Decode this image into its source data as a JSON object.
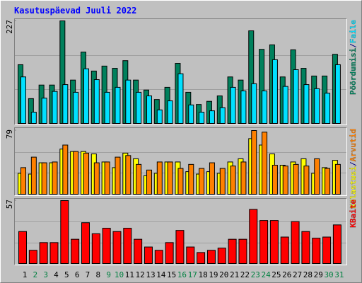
{
  "chart_data": [
    {
      "type": "bar",
      "title": "Kasutuspäevad Juuli 2022",
      "series": [
        {
          "name": "Pöördumisi",
          "color": "#00805c",
          "values": [
            130,
            55,
            85,
            85,
            227,
            96,
            158,
            116,
            127,
            122,
            139,
            96,
            74,
            53,
            80,
            133,
            69,
            42,
            49,
            61,
            103,
            96,
            205,
            164,
            174,
            103,
            163,
            122,
            105,
            105,
            153
          ]
        },
        {
          "name": "Faile",
          "color": "#00e0ff",
          "values": [
            103,
            25,
            56,
            71,
            86,
            69,
            121,
            97,
            69,
            80,
            96,
            69,
            61,
            30,
            50,
            110,
            41,
            25,
            28,
            35,
            80,
            72,
            88,
            72,
            141,
            82,
            119,
            86,
            77,
            67,
            130
          ]
        }
      ],
      "ylim": [
        0,
        227
      ],
      "yticks": [
        227
      ]
    },
    {
      "type": "bar",
      "series": [
        {
          "name": "Külastusi",
          "color": "#ffff00",
          "values": [
            26,
            25,
            39,
            39,
            56,
            53,
            53,
            50,
            40,
            33,
            51,
            44,
            23,
            26,
            40,
            40,
            28,
            25,
            28,
            26,
            40,
            44,
            69,
            61,
            50,
            36,
            40,
            44,
            26,
            33,
            42
          ]
        },
        {
          "name": "Arvutid",
          "color": "#ff8000",
          "values": [
            33,
            46,
            39,
            40,
            61,
            53,
            51,
            39,
            40,
            46,
            48,
            37,
            30,
            40,
            40,
            32,
            37,
            32,
            39,
            32,
            35,
            40,
            79,
            77,
            36,
            35,
            37,
            35,
            44,
            32,
            37
          ]
        }
      ],
      "ylim": [
        0,
        79
      ],
      "yticks": [
        79
      ]
    },
    {
      "type": "bar",
      "categories": [
        "1",
        "2",
        "3",
        "4",
        "5",
        "6",
        "7",
        "8",
        "9",
        "10",
        "11",
        "12",
        "13",
        "14",
        "15",
        "16",
        "17",
        "18",
        "19",
        "20",
        "21",
        "22",
        "23",
        "24",
        "25",
        "26",
        "27",
        "28",
        "29",
        "30",
        "31"
      ],
      "category_colors": [
        "#000000",
        "#008040",
        "#008040",
        "#000000",
        "#000000",
        "#000000",
        "#000000",
        "#000000",
        "#008040",
        "#008040",
        "#000000",
        "#000000",
        "#000000",
        "#000000",
        "#000000",
        "#008040",
        "#008040",
        "#000000",
        "#000000",
        "#000000",
        "#000000",
        "#000000",
        "#008040",
        "#008040",
        "#000000",
        "#000000",
        "#000000",
        "#000000",
        "#000000",
        "#008040",
        "#008040"
      ],
      "series": [
        {
          "name": "KBaite",
          "color": "#ff0000",
          "values": [
            29,
            12,
            19,
            19,
            57,
            22,
            37,
            27,
            32,
            29,
            32,
            22,
            15,
            12,
            19,
            30,
            15,
            10,
            12,
            14,
            22,
            22,
            49,
            39,
            39,
            24,
            38,
            29,
            23,
            24,
            35
          ]
        }
      ],
      "ylim": [
        0,
        57
      ],
      "yticks": [
        57
      ]
    }
  ],
  "legend_separator": "/"
}
